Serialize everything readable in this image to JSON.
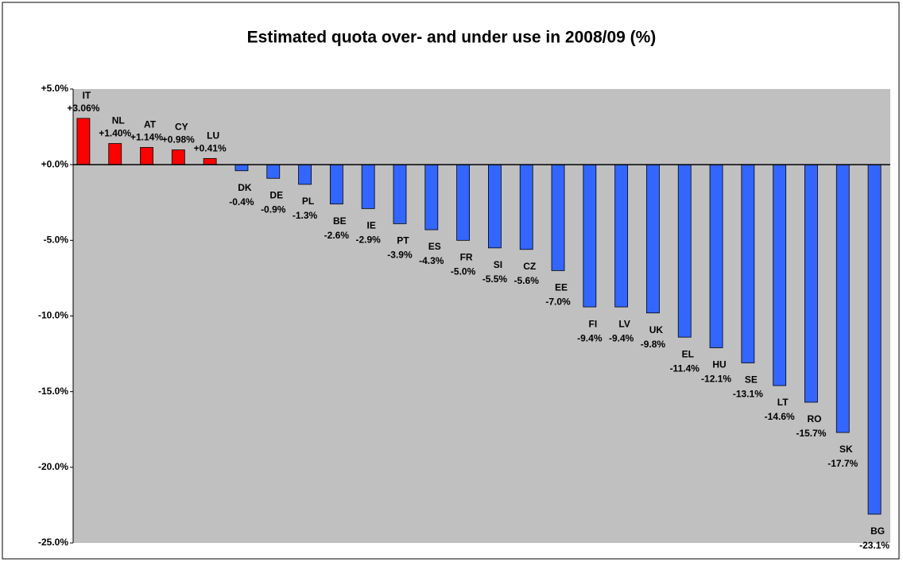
{
  "chart_data": {
    "type": "bar",
    "title": "Estimated quota over- and under use in 2008/09 (%)",
    "categories": [
      "IT",
      "NL",
      "AT",
      "CY",
      "LU",
      "DK",
      "DE",
      "PL",
      "BE",
      "IE",
      "PT",
      "ES",
      "FR",
      "SI",
      "CZ",
      "EE",
      "FI",
      "LV",
      "UK",
      "EL",
      "HU",
      "SE",
      "LT",
      "RO",
      "SK",
      "BG"
    ],
    "values": [
      3.06,
      1.4,
      1.14,
      0.98,
      0.41,
      -0.4,
      -0.9,
      -1.3,
      -2.6,
      -2.9,
      -3.9,
      -4.3,
      -5.0,
      -5.5,
      -5.6,
      -7.0,
      -9.4,
      -9.4,
      -9.8,
      -11.4,
      -12.1,
      -13.1,
      -14.6,
      -15.7,
      -17.7,
      -23.1
    ],
    "value_labels": [
      "+3.06%",
      "+1.40%",
      "+1.14%",
      "+0.98%",
      "+0.41%",
      "-0.4%",
      "-0.9%",
      "-1.3%",
      "-2.6%",
      "-2.9%",
      "-3.9%",
      "-4.3%",
      "-5.0%",
      "-5.5%",
      "-5.6%",
      "-7.0%",
      "-9.4%",
      "-9.4%",
      "-9.8%",
      "-11.4%",
      "-12.1%",
      "-13.1%",
      "-14.6%",
      "-15.7%",
      "-17.7%",
      "-23.1%"
    ],
    "positive_color": "#ff0000",
    "negative_color": "#3366ff",
    "ylim": [
      -25,
      5
    ],
    "yticks": [
      {
        "value": 5,
        "label": "+5.0%"
      },
      {
        "value": 0,
        "label": "+0.0%"
      },
      {
        "value": -5,
        "label": "-5.0%"
      },
      {
        "value": -10,
        "label": "-10.0%"
      },
      {
        "value": -15,
        "label": "-15.0%"
      },
      {
        "value": -20,
        "label": "-20.0%"
      },
      {
        "value": -25,
        "label": "-25.0%"
      }
    ],
    "grid": false
  }
}
